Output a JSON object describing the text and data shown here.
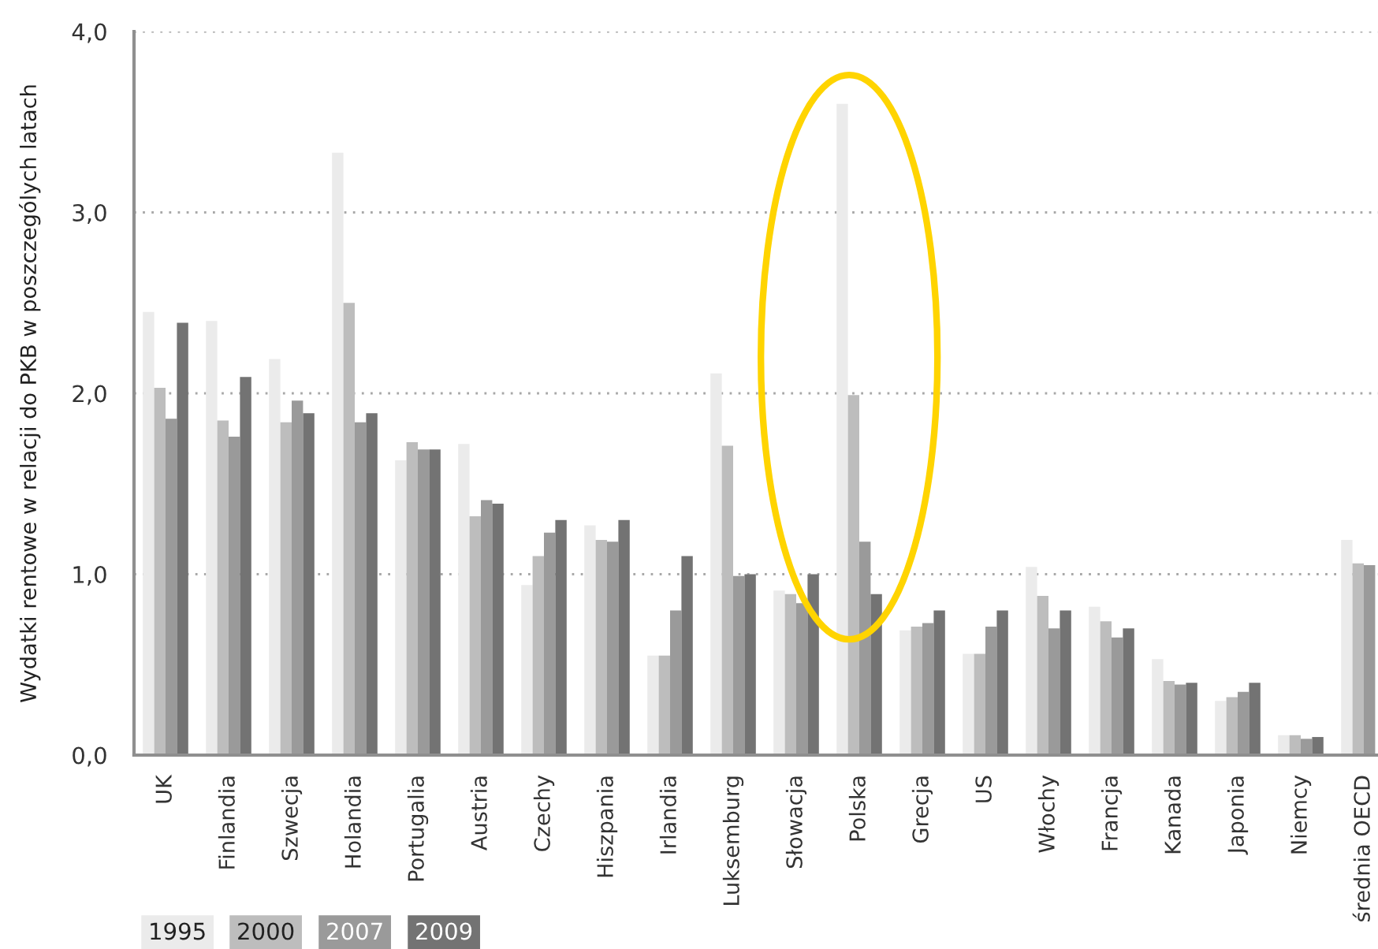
{
  "chart_data": {
    "type": "bar",
    "ylabel": "Wydatki rentowe w relacji do PKB w poszczególych latach",
    "categories": [
      "UK",
      "Finlandia",
      "Szwecja",
      "Holandia",
      "Portugalia",
      "Austria",
      "Czechy",
      "Hiszpania",
      "Irlandia",
      "Luksemburg",
      "Słowacja",
      "Polska",
      "Grecja",
      "US",
      "Włochy",
      "Francja",
      "Kanada",
      "Japonia",
      "Niemcy",
      "średnia OECD"
    ],
    "series": [
      {
        "name": "1995",
        "color": "#ebebeb",
        "values": [
          2.45,
          2.4,
          2.19,
          3.33,
          1.63,
          1.72,
          0.94,
          1.27,
          0.55,
          2.11,
          0.91,
          3.6,
          0.69,
          0.56,
          1.04,
          0.82,
          0.53,
          0.3,
          0.11,
          1.19
        ]
      },
      {
        "name": "2000",
        "color": "#bdbdbd",
        "values": [
          2.03,
          1.85,
          1.84,
          2.5,
          1.73,
          1.32,
          1.1,
          1.19,
          0.55,
          1.71,
          0.89,
          1.99,
          0.71,
          0.56,
          0.88,
          0.74,
          0.41,
          0.32,
          0.11,
          1.06
        ]
      },
      {
        "name": "2007",
        "color": "#9a9a9a",
        "values": [
          1.86,
          1.76,
          1.96,
          1.84,
          1.69,
          1.41,
          1.23,
          1.18,
          0.8,
          0.99,
          0.84,
          1.18,
          0.73,
          0.71,
          0.7,
          0.65,
          0.39,
          0.35,
          0.09,
          1.05
        ]
      },
      {
        "name": "2009",
        "color": "#737373",
        "values": [
          2.39,
          2.09,
          1.89,
          1.89,
          1.69,
          1.39,
          1.3,
          1.3,
          1.1,
          1.0,
          1.0,
          0.89,
          0.8,
          0.8,
          0.8,
          0.7,
          0.4,
          0.4,
          0.1,
          null
        ]
      }
    ],
    "ylim": [
      0,
      4
    ],
    "yticks": [
      {
        "value": 0,
        "label": "0,0"
      },
      {
        "value": 1,
        "label": "1,0"
      },
      {
        "value": 2,
        "label": "2,0"
      },
      {
        "value": 3,
        "label": "3,0"
      },
      {
        "value": 4,
        "label": "4,0"
      }
    ],
    "grid": "y",
    "legend": "bottom left"
  }
}
